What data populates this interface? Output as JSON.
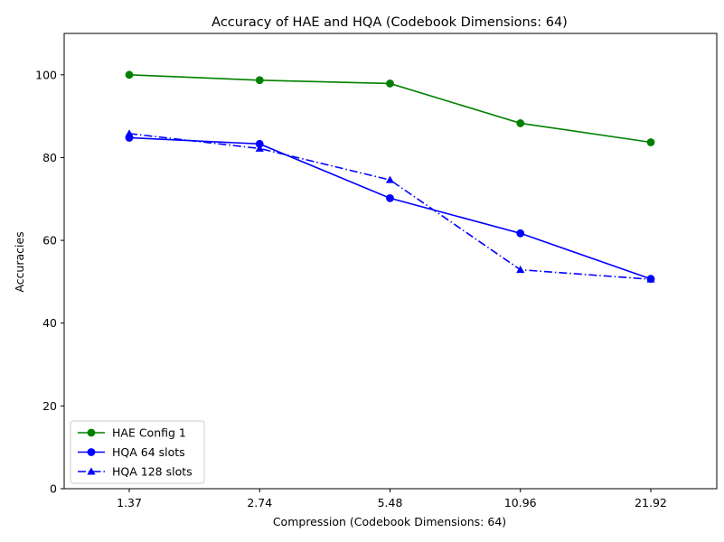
{
  "chart_data": {
    "type": "line",
    "title": "Accuracy of HAE and HQA (Codebook Dimensions: 64)",
    "xlabel": "Compression (Codebook Dimensions: 64)",
    "ylabel": "Accuracies",
    "categories": [
      "1.37",
      "2.74",
      "5.48",
      "10.96",
      "21.92"
    ],
    "ylim": [
      0,
      110
    ],
    "yticks": [
      0,
      20,
      40,
      60,
      80,
      100
    ],
    "grid": false,
    "legend_position": "lower-left",
    "series": [
      {
        "name": "HAE Config 1",
        "values": [
          100.0,
          98.7,
          97.9,
          88.3,
          83.7
        ],
        "color": "#008000",
        "marker": "circle",
        "linestyle": "solid"
      },
      {
        "name": "HQA 64 slots",
        "values": [
          84.8,
          83.3,
          70.2,
          61.7,
          50.7
        ],
        "color": "#0000ff",
        "marker": "circle",
        "linestyle": "solid"
      },
      {
        "name": "HQA 128 slots",
        "values": [
          85.8,
          82.2,
          74.6,
          52.9,
          50.6
        ],
        "color": "#0000ff",
        "marker": "triangle",
        "linestyle": "dashdot"
      }
    ]
  }
}
